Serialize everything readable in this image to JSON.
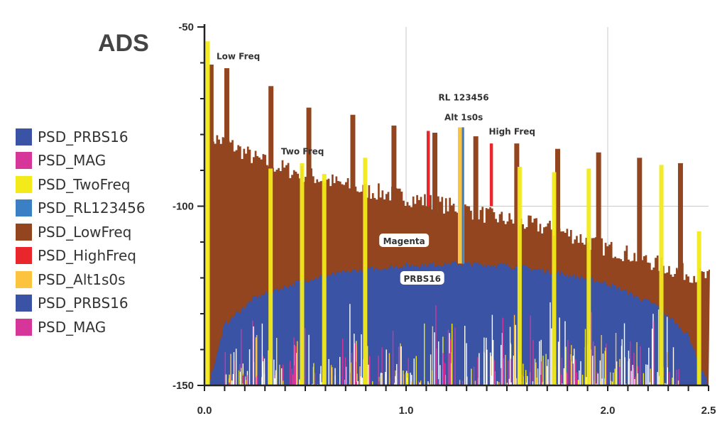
{
  "chart_data": {
    "type": "bar",
    "title": "ADS",
    "xlabel": "",
    "ylabel": "",
    "xlim": [
      0,
      2.5
    ],
    "ylim": [
      -150,
      -50
    ],
    "x_ticks": [
      {
        "value": 0,
        "label": "0.0"
      },
      {
        "value": 1,
        "label": "1.0"
      },
      {
        "value": 2,
        "label": "2.0"
      },
      {
        "value": 2.5,
        "label": "2.5"
      }
    ],
    "y_ticks": [
      {
        "value": -50,
        "label": "-50"
      },
      {
        "value": -100,
        "label": "-100"
      },
      {
        "value": -150,
        "label": "-150"
      }
    ],
    "grid": true,
    "legend_position": "left",
    "legend": [
      {
        "name": "PSD_PRBS16",
        "color": "#3a53a4"
      },
      {
        "name": "PSD_MAG",
        "color": "#d6359a"
      },
      {
        "name": "PSD_TwoFreq",
        "color": "#f2ea1b"
      },
      {
        "name": "PSD_RL123456",
        "color": "#3b7fc4"
      },
      {
        "name": "PSD_LowFreq",
        "color": "#93451f"
      },
      {
        "name": "PSD_HighFreq",
        "color": "#e8262b"
      },
      {
        "name": "PSD_Alt1s0s",
        "color": "#fcc33f"
      },
      {
        "name": "PSD_PRBS16",
        "color": "#3a53a4"
      },
      {
        "name": "PSD_MAG",
        "color": "#d6359a"
      }
    ],
    "series": [
      {
        "name": "PSD_LowFreq",
        "kind": "spikes",
        "x": [
          0.031,
          0.109,
          0.328,
          0.516,
          0.734,
          0.938,
          1.141,
          1.344,
          1.547,
          1.75,
          1.953,
          2.156,
          2.359
        ],
        "values": [
          -60.5,
          -61.5,
          -66.5,
          -72.5,
          -74.5,
          -77.5,
          -79.5,
          -80.5,
          -82.5,
          -84,
          -85,
          -86.5,
          -88
        ],
        "floor": [
          -80,
          -83,
          -87,
          -89.5,
          -91.5,
          -93.5,
          -95.5,
          -96.5,
          -98,
          -99.5,
          -101,
          -103,
          -104.5,
          -106,
          -108,
          -111,
          -113,
          -115.5,
          -118,
          -120
        ],
        "floor_x": [
          0,
          0.13,
          0.26,
          0.39,
          0.52,
          0.65,
          0.78,
          0.91,
          1.04,
          1.17,
          1.3,
          1.43,
          1.56,
          1.69,
          1.82,
          1.95,
          2.08,
          2.21,
          2.34,
          2.5
        ]
      },
      {
        "name": "PSD_TwoFreq",
        "kind": "spikes",
        "x": [
          0.016,
          0.328,
          0.484,
          0.594,
          0.797,
          1.563,
          1.734,
          1.906,
          2.266,
          2.453
        ],
        "values": [
          -54,
          -89.5,
          -88,
          -91,
          -86.5,
          -89,
          -90.5,
          -89.5,
          -88.5,
          -107
        ]
      },
      {
        "name": "PSD_HighFreq",
        "kind": "spikes",
        "x": [
          1.109,
          1.422
        ],
        "values": [
          -79,
          -82.5
        ]
      },
      {
        "name": "PSD_Alt1s0s",
        "kind": "spikes",
        "x": [
          1.271
        ],
        "values": [
          -78
        ]
      },
      {
        "name": "PSD_RL123456",
        "kind": "spikes",
        "x": [
          1.282
        ],
        "values": [
          -78
        ]
      },
      {
        "name": "PSD_PRBS16",
        "kind": "dome",
        "x": [
          0.02,
          0.1,
          0.25,
          0.5,
          0.75,
          1.0,
          1.25,
          1.5,
          1.75,
          2.0,
          2.25,
          2.4,
          2.5
        ],
        "values": [
          -150,
          -133,
          -125.5,
          -120.5,
          -118,
          -116.5,
          -116,
          -116.5,
          -118.5,
          -121.5,
          -128,
          -136,
          -150
        ]
      },
      {
        "name": "PSD_MAG",
        "kind": "noise",
        "floor_db": -150
      }
    ],
    "annotations": [
      {
        "text": "Low Freq",
        "x": 0.06,
        "y": -59
      },
      {
        "text": "Two Freq",
        "x": 0.38,
        "y": -85.5
      },
      {
        "text": "RL 123456",
        "x": 1.16,
        "y": -70.5
      },
      {
        "text": "Alt 1s0s",
        "x": 1.19,
        "y": -76
      },
      {
        "text": "High Freq",
        "x": 1.41,
        "y": -80
      },
      {
        "text": "Magenta",
        "x": 0.99,
        "y": -110,
        "boxed": true
      },
      {
        "text": "PRBS16",
        "x": 1.08,
        "y": -120.5,
        "boxed": true
      }
    ]
  }
}
